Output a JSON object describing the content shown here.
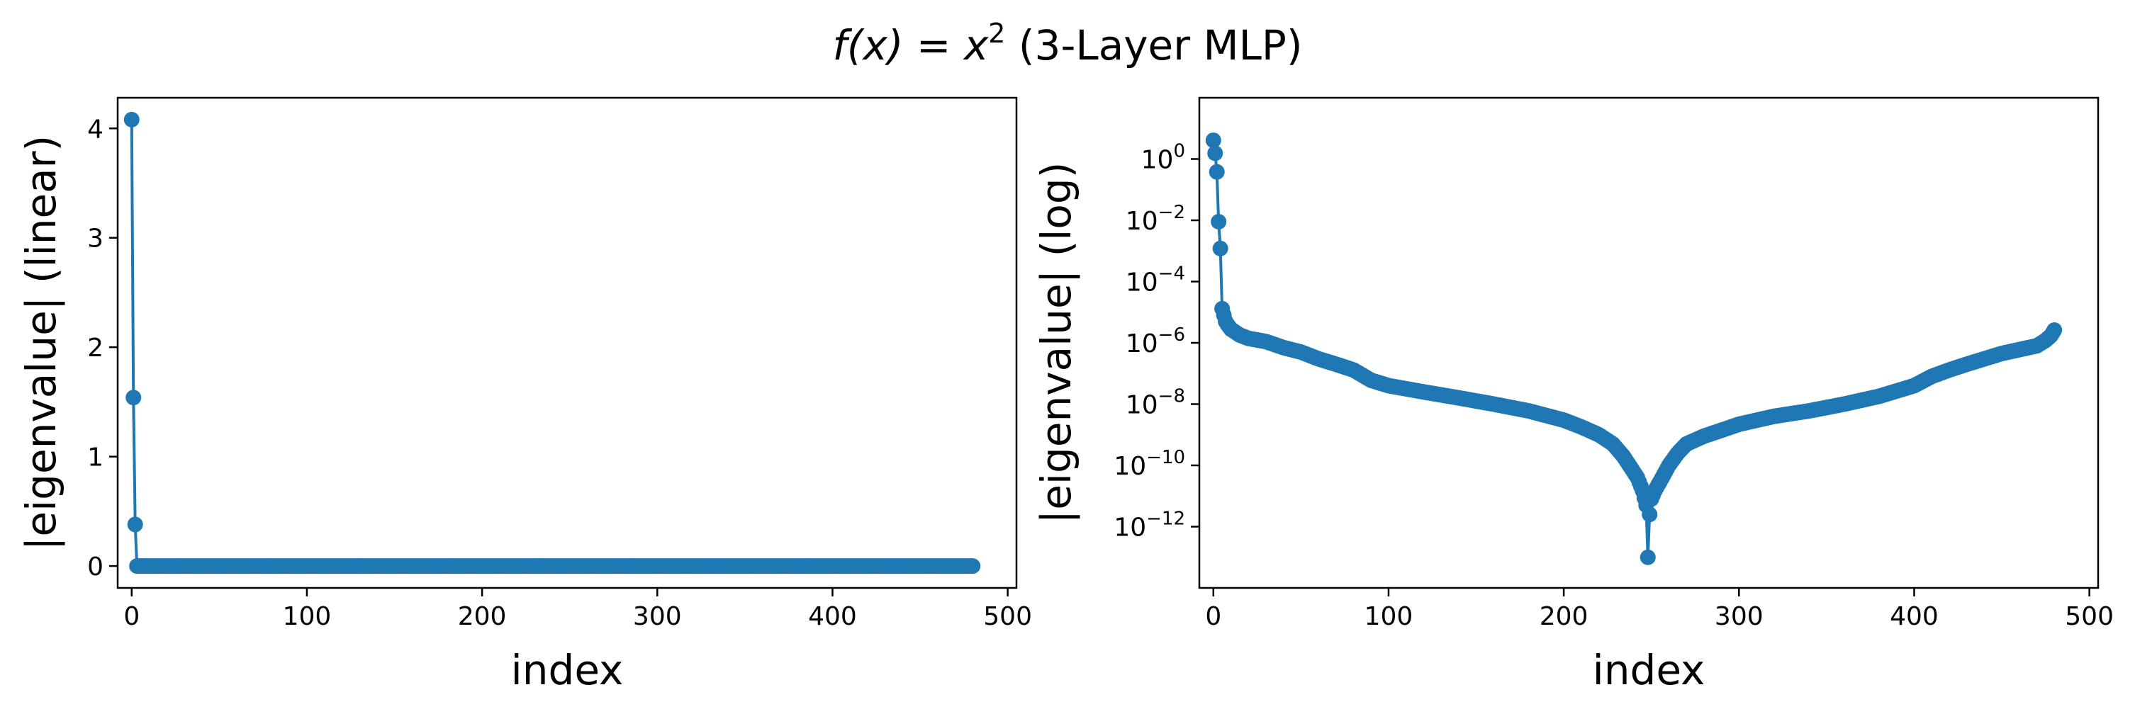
{
  "figure": {
    "title_prefix": "f(x) = x",
    "title_exponent": "2",
    "title_suffix": " (3-Layer MLP)"
  },
  "chart_data": [
    {
      "type": "line",
      "marker": "circle",
      "color": "#1f77b4",
      "xlabel": "index",
      "ylabel": "|eigenvalue| (linear)",
      "xscale": "linear",
      "yscale": "linear",
      "xlim": [
        -8,
        505
      ],
      "ylim": [
        -0.2,
        4.28
      ],
      "xticks": [
        0,
        100,
        200,
        300,
        400,
        500
      ],
      "xtick_labels": [
        "0",
        "100",
        "200",
        "300",
        "400",
        "500"
      ],
      "yticks": [
        0,
        1,
        2,
        3,
        4
      ],
      "ytick_labels": [
        "0",
        "1",
        "2",
        "3",
        "4"
      ],
      "grid": false,
      "series": [
        {
          "index_range": [
            0,
            480
          ],
          "leading_points": [
            [
              0,
              4.08
            ],
            [
              1,
              1.54
            ],
            [
              2,
              0.38
            ]
          ],
          "tail_value": 0.0
        }
      ]
    },
    {
      "type": "line",
      "marker": "circle",
      "color": "#1f77b4",
      "xlabel": "index",
      "ylabel": "|eigenvalue| (log)",
      "xscale": "linear",
      "yscale": "log",
      "xlim": [
        -8,
        505
      ],
      "ylim": [
        1e-14,
        100.0
      ],
      "xticks": [
        0,
        100,
        200,
        300,
        400,
        500
      ],
      "xtick_labels": [
        "0",
        "100",
        "200",
        "300",
        "400",
        "500"
      ],
      "yticks": [
        1,
        0.01,
        0.0001,
        1e-06,
        1e-08,
        1e-10,
        1e-12
      ],
      "ytick_bases": [
        "10",
        "10",
        "10",
        "10",
        "10",
        "10",
        "10"
      ],
      "ytick_exponents": [
        "0",
        "−2",
        "−4",
        "−6",
        "−8",
        "−10",
        "−12"
      ],
      "grid": false,
      "series": [
        {
          "index_range": [
            0,
            480
          ],
          "points": [
            [
              0,
              4.08
            ],
            [
              1,
              1.54
            ],
            [
              2,
              0.38
            ],
            [
              3,
              0.009
            ],
            [
              4,
              0.0012
            ],
            [
              5,
              1.3e-05
            ],
            [
              6,
              8e-06
            ],
            [
              7,
              5e-06
            ],
            [
              8,
              4e-06
            ],
            [
              10,
              2.8e-06
            ],
            [
              15,
              1.8e-06
            ],
            [
              20,
              1.4e-06
            ],
            [
              30,
              1.1e-06
            ],
            [
              40,
              7e-07
            ],
            [
              50,
              5e-07
            ],
            [
              60,
              3e-07
            ],
            [
              70,
              2e-07
            ],
            [
              80,
              1.3e-07
            ],
            [
              90,
              6e-08
            ],
            [
              100,
              4e-08
            ],
            [
              120,
              2.5e-08
            ],
            [
              140,
              1.6e-08
            ],
            [
              160,
              1e-08
            ],
            [
              180,
              6e-09
            ],
            [
              200,
              3e-09
            ],
            [
              210,
              1.8e-09
            ],
            [
              220,
              1e-09
            ],
            [
              228,
              5e-10
            ],
            [
              234,
              2e-10
            ],
            [
              238,
              9e-11
            ],
            [
              242,
              4e-11
            ],
            [
              245,
              1.5e-11
            ],
            [
              247,
              5e-12
            ],
            [
              248,
              1e-13
            ],
            [
              249,
              2.5e-12
            ],
            [
              250,
              8e-12
            ],
            [
              252,
              1.5e-11
            ],
            [
              255,
              3e-11
            ],
            [
              260,
              1e-10
            ],
            [
              265,
              2.5e-10
            ],
            [
              270,
              5e-10
            ],
            [
              280,
              9e-10
            ],
            [
              290,
              1.4e-09
            ],
            [
              300,
              2.2e-09
            ],
            [
              320,
              4e-09
            ],
            [
              340,
              6e-09
            ],
            [
              360,
              1e-08
            ],
            [
              380,
              1.8e-08
            ],
            [
              400,
              4e-08
            ],
            [
              410,
              8e-08
            ],
            [
              420,
              1.3e-07
            ],
            [
              430,
              2e-07
            ],
            [
              440,
              3e-07
            ],
            [
              450,
              4.5e-07
            ],
            [
              460,
              6e-07
            ],
            [
              470,
              8e-07
            ],
            [
              475,
              1.2e-06
            ],
            [
              478,
              1.7e-06
            ],
            [
              480,
              2.6e-06
            ]
          ]
        }
      ]
    }
  ]
}
